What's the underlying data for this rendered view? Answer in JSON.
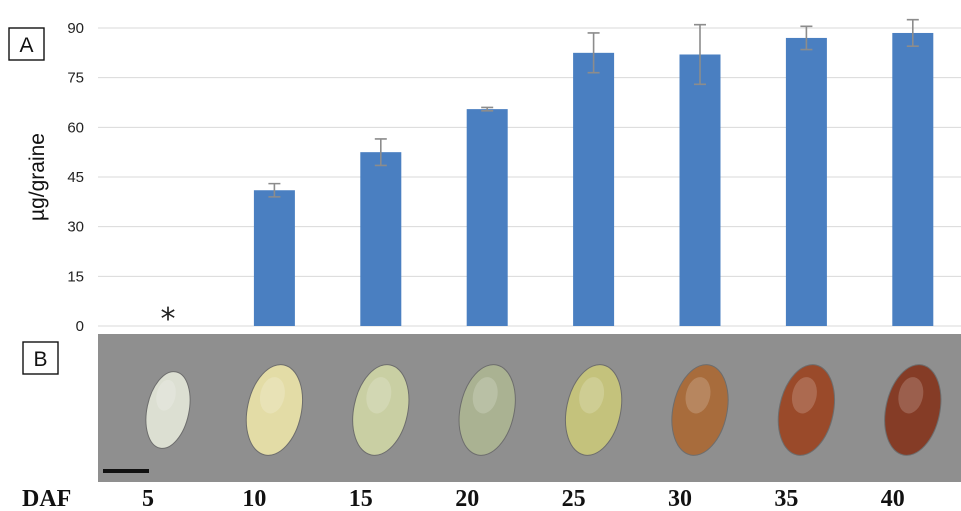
{
  "panel_a_label": "A",
  "panel_b_label": "B",
  "daf_label": "DAF",
  "no_data_marker": "*",
  "colors": {
    "bar": "#4a7fc1",
    "error_bar": "#8c8c8c",
    "grid": "#d9d9d9",
    "photo_strip": "#8f8f8f"
  },
  "chart_data": {
    "type": "bar",
    "title": "",
    "xlabel": "DAF",
    "ylabel": "µg/graine",
    "categories": [
      "5",
      "10",
      "15",
      "20",
      "25",
      "30",
      "35",
      "40"
    ],
    "values": [
      null,
      41,
      52.5,
      65.5,
      82.5,
      82,
      87,
      88.5
    ],
    "errors": [
      null,
      2,
      4,
      0.5,
      6,
      9,
      3.5,
      4
    ],
    "ylim": [
      0,
      90
    ],
    "yticks": [
      0,
      15,
      30,
      45,
      60,
      75,
      90
    ],
    "grid": true,
    "legend": "none",
    "annotations": [
      {
        "category": "5",
        "text": "*"
      }
    ]
  },
  "seeds": [
    {
      "daf": "5",
      "color": "#dcdfd2",
      "stage": "white"
    },
    {
      "daf": "10",
      "color": "#e3dca6",
      "stage": "yellow"
    },
    {
      "daf": "15",
      "color": "#c9cfa3",
      "stage": "light-green"
    },
    {
      "daf": "20",
      "color": "#aab292",
      "stage": "green"
    },
    {
      "daf": "25",
      "color": "#c4c27c",
      "stage": "yellow-green"
    },
    {
      "daf": "30",
      "color": "#a86c3c",
      "stage": "brown"
    },
    {
      "daf": "35",
      "color": "#9a4a2a",
      "stage": "red-brown"
    },
    {
      "daf": "40",
      "color": "#853c26",
      "stage": "dark-brown"
    }
  ]
}
